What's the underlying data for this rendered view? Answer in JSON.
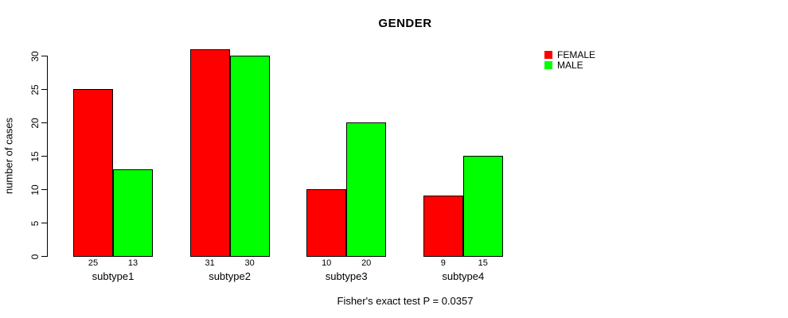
{
  "chart_data": {
    "type": "bar",
    "title": "GENDER",
    "xlabel": "",
    "ylabel": "number of cases",
    "categories": [
      "subtype1",
      "subtype2",
      "subtype3",
      "subtype4"
    ],
    "series": [
      {
        "name": "FEMALE",
        "color": "#ff0000",
        "values": [
          25,
          31,
          10,
          9
        ]
      },
      {
        "name": "MALE",
        "color": "#00ff00",
        "values": [
          13,
          30,
          20,
          15
        ]
      }
    ],
    "ylim": [
      0,
      30
    ],
    "yticks": [
      0,
      5,
      10,
      15,
      20,
      25,
      30
    ],
    "bar_value_labels": true,
    "grid": false,
    "legend_position": "top-right",
    "annotation": "Fisher's exact test P = 0.0357",
    "axis_color": "#000000",
    "background_color": "#ffffff"
  }
}
